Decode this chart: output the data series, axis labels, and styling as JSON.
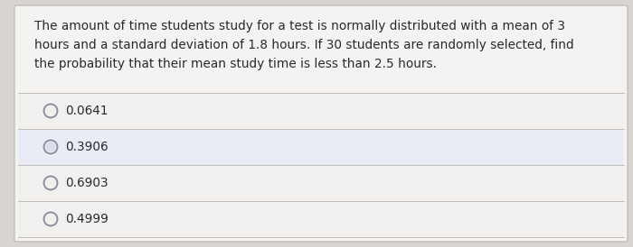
{
  "question_text": "The amount of time students study for a test is normally distributed with a mean of 3\nhours and a standard deviation of 1.8 hours. If 30 students are randomly selected, find\nthe probability that their mean study time is less than 2.5 hours.",
  "options": [
    "0.0641",
    "0.3906",
    "0.6903",
    "0.4999"
  ],
  "bg_color": "#d8d4d0",
  "card_color": "#f5f3f1",
  "text_color": "#2a2a2a",
  "option_text_color": "#2a2a2a",
  "circle_color": "#8a8a9a",
  "circle_inner_color": "#c8d0e0",
  "line_color": "#c0bdb8",
  "question_fontsize": 9.8,
  "option_fontsize": 9.8,
  "border_color": "#b8b4b0",
  "highlight_row": 1,
  "highlight_color": "#eef0f8",
  "option_row_colors": [
    "#f2f0ee",
    "#eaecf5",
    "#f2f0ee",
    "#f2f0ee"
  ]
}
